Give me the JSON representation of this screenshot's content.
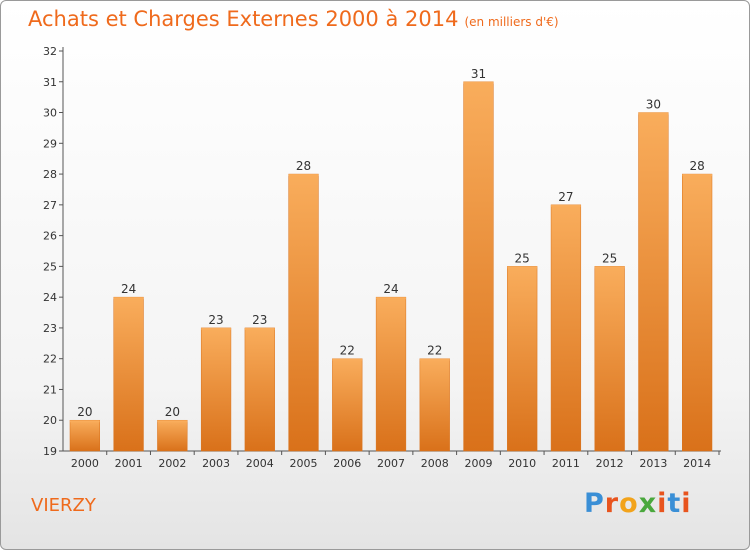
{
  "title": "Achats et Charges Externes 2000 à 2014",
  "subtitle": "(en milliers d'€)",
  "commune": "VIERZY",
  "logo": {
    "letters": [
      "P",
      "r",
      "o",
      "x",
      "i",
      "t",
      "i"
    ],
    "colors": [
      "#3a8fd6",
      "#e8541e",
      "#f2a31b",
      "#4aa83d",
      "#e8541e",
      "#3a8fd6",
      "#e8541e"
    ]
  },
  "chart_data": {
    "type": "bar",
    "categories": [
      "2000",
      "2001",
      "2002",
      "2003",
      "2004",
      "2005",
      "2006",
      "2007",
      "2008",
      "2009",
      "2010",
      "2011",
      "2012",
      "2013",
      "2014"
    ],
    "values": [
      20,
      24,
      20,
      23,
      23,
      28,
      22,
      24,
      22,
      31,
      25,
      27,
      25,
      30,
      28
    ],
    "data_labels": [
      "20",
      "24",
      "20",
      "23",
      "23",
      "28",
      "22",
      "24",
      "22",
      "31",
      "25",
      "27",
      "25",
      "30",
      "28"
    ],
    "yticks": [
      19,
      20,
      21,
      22,
      23,
      24,
      25,
      26,
      27,
      28,
      29,
      30,
      31,
      32
    ],
    "ylim": [
      19,
      32
    ],
    "grid": false,
    "bar_color": "#ee8a30",
    "bar_color_light": "#f9ad5c",
    "bar_color_dark": "#d9711a"
  }
}
